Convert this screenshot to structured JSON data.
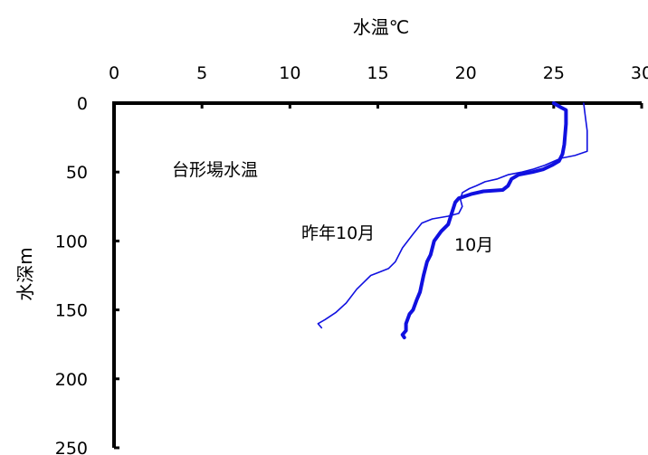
{
  "chart_data": {
    "type": "line",
    "title": "",
    "xlabel": "水温℃",
    "ylabel": "水深m",
    "xlim": [
      0,
      30
    ],
    "ylim": [
      0,
      250
    ],
    "y_inverted": true,
    "x_axis_position": "top",
    "grid": false,
    "x_ticks": [
      "0",
      "5",
      "10",
      "15",
      "20",
      "25",
      "30"
    ],
    "y_ticks": [
      "0",
      "50",
      "100",
      "150",
      "200",
      "250"
    ],
    "annotations": [
      "台形場水温",
      "昨年10月",
      "10月"
    ],
    "series": [
      {
        "name": "10月",
        "color": "#1010e0",
        "points": [
          [
            25.0,
            0
          ],
          [
            25.4,
            3
          ],
          [
            25.7,
            5
          ],
          [
            25.7,
            15
          ],
          [
            25.6,
            30
          ],
          [
            25.5,
            37
          ],
          [
            25.3,
            42
          ],
          [
            24.9,
            45
          ],
          [
            24.4,
            48
          ],
          [
            23.8,
            50
          ],
          [
            23.0,
            52
          ],
          [
            22.6,
            55
          ],
          [
            22.4,
            60
          ],
          [
            22.1,
            63
          ],
          [
            21.0,
            64
          ],
          [
            20.3,
            66
          ],
          [
            19.6,
            69
          ],
          [
            19.4,
            72
          ],
          [
            19.2,
            80
          ],
          [
            19.0,
            88
          ],
          [
            18.6,
            93
          ],
          [
            18.2,
            100
          ],
          [
            18.0,
            110
          ],
          [
            17.8,
            115
          ],
          [
            17.6,
            125
          ],
          [
            17.4,
            137
          ],
          [
            17.2,
            143
          ],
          [
            17.0,
            150
          ],
          [
            16.8,
            153
          ],
          [
            16.6,
            160
          ],
          [
            16.6,
            165
          ],
          [
            16.4,
            168
          ],
          [
            16.5,
            170
          ]
        ]
      },
      {
        "name": "昨年10月",
        "color": "#1010e0",
        "points": [
          [
            26.7,
            0
          ],
          [
            26.8,
            10
          ],
          [
            26.9,
            20
          ],
          [
            26.9,
            35
          ],
          [
            26.2,
            38
          ],
          [
            25.4,
            40
          ],
          [
            24.5,
            45
          ],
          [
            23.8,
            48
          ],
          [
            23.2,
            50
          ],
          [
            22.4,
            52
          ],
          [
            21.8,
            55
          ],
          [
            21.1,
            57
          ],
          [
            20.6,
            60
          ],
          [
            20.2,
            62
          ],
          [
            19.8,
            65
          ],
          [
            19.7,
            70
          ],
          [
            19.8,
            75
          ],
          [
            19.6,
            80
          ],
          [
            19.0,
            82
          ],
          [
            18.1,
            84
          ],
          [
            17.5,
            87
          ],
          [
            17.0,
            95
          ],
          [
            16.4,
            105
          ],
          [
            16.0,
            115
          ],
          [
            15.6,
            120
          ],
          [
            15.0,
            123
          ],
          [
            14.6,
            125
          ],
          [
            14.2,
            130
          ],
          [
            13.8,
            135
          ],
          [
            13.2,
            145
          ],
          [
            12.6,
            152
          ],
          [
            12.0,
            157
          ],
          [
            11.6,
            160
          ],
          [
            11.8,
            163
          ]
        ]
      }
    ]
  }
}
